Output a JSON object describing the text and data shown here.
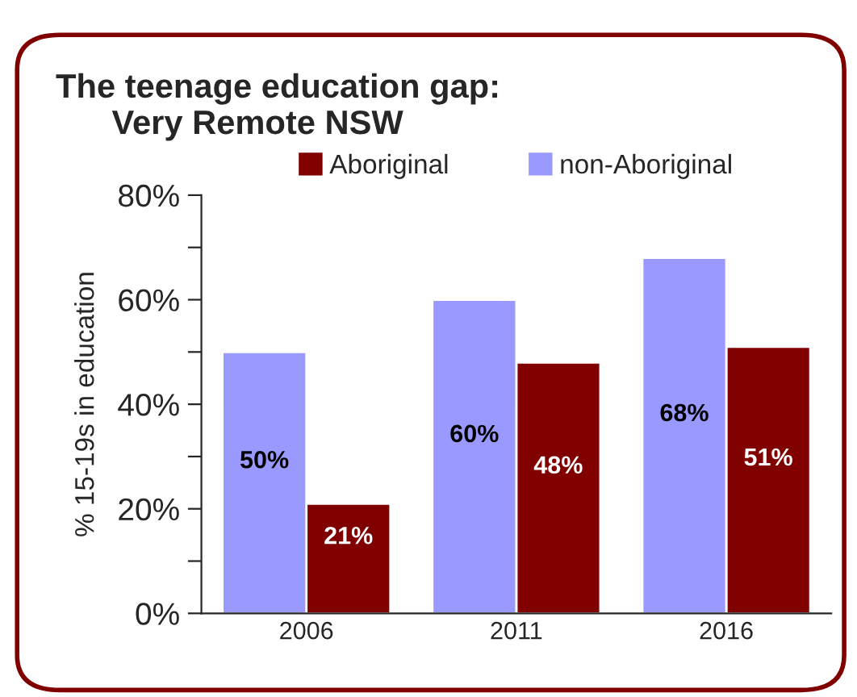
{
  "chart_data": {
    "type": "bar",
    "title": "The teenage education gap:\n      Very Remote NSW",
    "ylabel": "% 15-19s in education",
    "categories": [
      "2006",
      "2011",
      "2016"
    ],
    "series": [
      {
        "name": "Aboriginal",
        "color": "#800000",
        "values": [
          21,
          48,
          51
        ],
        "value_labels": [
          "21%",
          "48%",
          "51%"
        ]
      },
      {
        "name": "non-Aboriginal",
        "color": "#9999ff",
        "values": [
          50,
          60,
          68
        ],
        "value_labels": [
          "50%",
          "60%",
          "68%"
        ]
      }
    ],
    "ylim": [
      0,
      80
    ],
    "yticks": [
      {
        "value": 0,
        "label": "0%"
      },
      {
        "value": 10,
        "label": null
      },
      {
        "value": 20,
        "label": "20%"
      },
      {
        "value": 30,
        "label": null
      },
      {
        "value": 40,
        "label": "40%"
      },
      {
        "value": 50,
        "label": null
      },
      {
        "value": 60,
        "label": "60%"
      },
      {
        "value": 70,
        "label": null
      },
      {
        "value": 80,
        "label": "80%"
      }
    ],
    "legend": "top",
    "grid": false
  }
}
